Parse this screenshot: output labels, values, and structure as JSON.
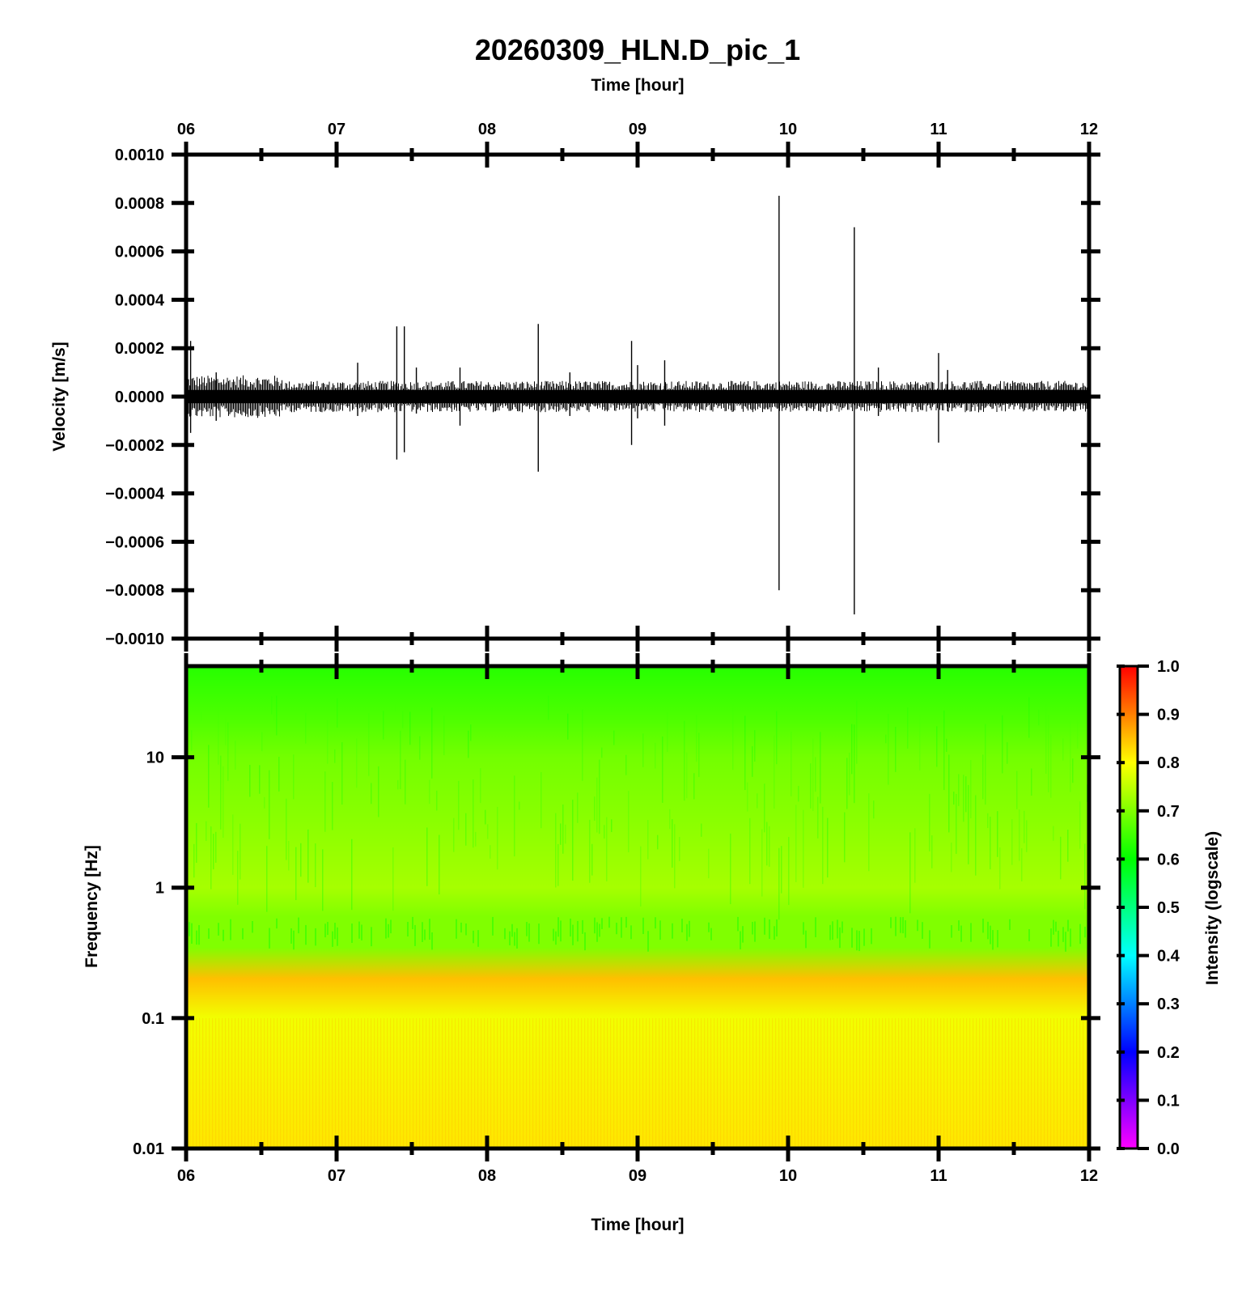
{
  "chart_data": [
    {
      "type": "line",
      "title": "20260309_HLN.D_pic_1",
      "top_xlabel": "Time [hour]",
      "ylabel": "Velocity [m/s]",
      "xlim": [
        6,
        12
      ],
      "ylim": [
        -0.001,
        0.001
      ],
      "x_tick_labels": [
        "06",
        "07",
        "08",
        "09",
        "10",
        "11",
        "12"
      ],
      "y_tick_values": [
        0.001,
        0.0008,
        0.0006,
        0.0004,
        0.0002,
        0,
        -0.0002,
        -0.0004,
        -0.0006,
        -0.0008,
        -0.001
      ],
      "y_tick_labels": [
        "0.0010",
        "0.0008",
        "0.0006",
        "0.0004",
        "0.0002",
        "0.0000",
        "−0.0002",
        "−0.0004",
        "−0.0006",
        "−0.0008",
        "−0.0010"
      ],
      "grid": false,
      "series": [
        {
          "noise_band": [
            -5e-05,
            5e-05
          ],
          "spikes": [
            {
              "x": 6.03,
              "max": 0.00023,
              "min": -0.00015
            },
            {
              "x": 6.2,
              "max": 0.0001,
              "min": -0.0001
            },
            {
              "x": 7.14,
              "max": 0.00014,
              "min": -8e-05
            },
            {
              "x": 7.4,
              "max": 0.00029,
              "min": -0.00026
            },
            {
              "x": 7.45,
              "max": 0.00029,
              "min": -0.00023
            },
            {
              "x": 7.53,
              "max": 0.00012,
              "min": -7e-05
            },
            {
              "x": 7.82,
              "max": 0.00012,
              "min": -0.00012
            },
            {
              "x": 8.34,
              "max": 0.0003,
              "min": -0.00031
            },
            {
              "x": 8.55,
              "max": 0.0001,
              "min": -8e-05
            },
            {
              "x": 8.96,
              "max": 0.00023,
              "min": -0.0002
            },
            {
              "x": 9.0,
              "max": 0.00013,
              "min": -9e-05
            },
            {
              "x": 9.18,
              "max": 0.00015,
              "min": -0.00012
            },
            {
              "x": 9.94,
              "max": 0.00083,
              "min": -0.0008
            },
            {
              "x": 10.44,
              "max": 0.0007,
              "min": -0.0009
            },
            {
              "x": 10.6,
              "max": 0.00012,
              "min": -8e-05
            },
            {
              "x": 11.0,
              "max": 0.00018,
              "min": -0.00019
            },
            {
              "x": 11.06,
              "max": 0.00011,
              "min": -6e-05
            }
          ]
        }
      ]
    },
    {
      "type": "heatmap",
      "xlabel": "Time [hour]",
      "ylabel": "Frequency [Hz]",
      "xlim": [
        6,
        12
      ],
      "ylim": [
        0.01,
        50
      ],
      "yscale": "log",
      "x_tick_labels": [
        "06",
        "07",
        "08",
        "09",
        "10",
        "11",
        "12"
      ],
      "y_tick_values": [
        10,
        1,
        0.1,
        0.01
      ],
      "y_tick_labels": [
        "10",
        "1",
        "0.1",
        "0.01"
      ],
      "intensity_profile": [
        {
          "freq": 50,
          "intensity": 0.63
        },
        {
          "freq": 20,
          "intensity": 0.66
        },
        {
          "freq": 10,
          "intensity": 0.69
        },
        {
          "freq": 3,
          "intensity": 0.71
        },
        {
          "freq": 1,
          "intensity": 0.73
        },
        {
          "freq": 0.6,
          "intensity": 0.7
        },
        {
          "freq": 0.35,
          "intensity": 0.7
        },
        {
          "freq": 0.2,
          "intensity": 0.85
        },
        {
          "freq": 0.1,
          "intensity": 0.79
        },
        {
          "freq": 0.01,
          "intensity": 0.82
        }
      ],
      "colorbar": {
        "label": "Intensity (logscale)",
        "range": [
          0,
          1
        ],
        "tick_values": [
          1,
          0.9,
          0.8,
          0.7,
          0.6,
          0.5,
          0.4,
          0.3,
          0.2,
          0.1,
          0
        ],
        "tick_labels": [
          "1.0",
          "0.9",
          "0.8",
          "0.7",
          "0.6",
          "0.5",
          "0.4",
          "0.3",
          "0.2",
          "0.1",
          "0.0"
        ],
        "colors": [
          "#ff00ff",
          "#0000ff",
          "#00ffff",
          "#00ff00",
          "#ffff00",
          "#ff0000"
        ]
      }
    }
  ]
}
